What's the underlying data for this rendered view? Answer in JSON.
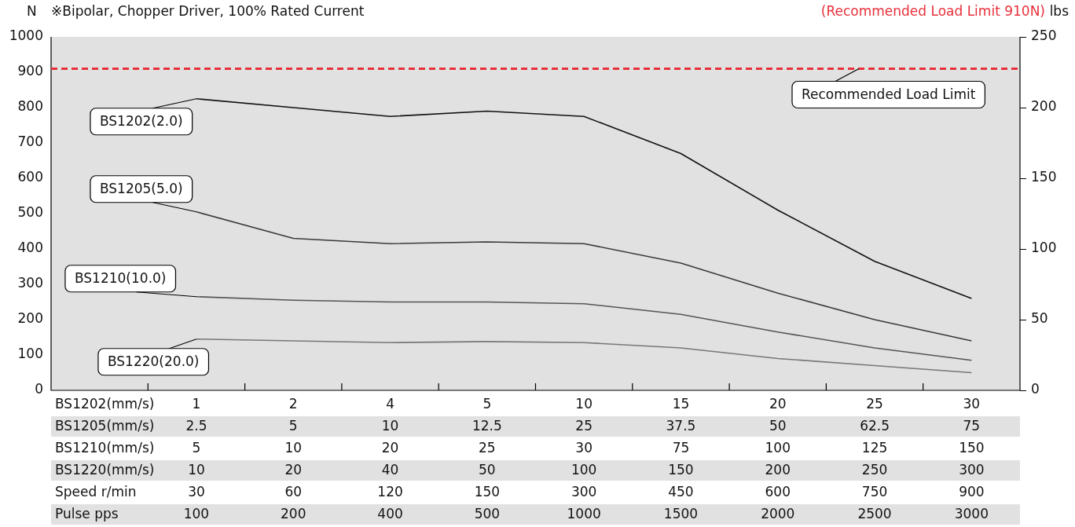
{
  "chart_data": {
    "type": "line",
    "title": "※Bipolar, Chopper Driver, 100% Rated Current",
    "subtitle": "(Recommended Load Limit 910N)",
    "ylabel": "N",
    "y2label": "lbs",
    "xlabel": "BS1202(mm/s)",
    "categories": [
      "1",
      "2",
      "4",
      "5",
      "10",
      "15",
      "20",
      "25",
      "30"
    ],
    "series": [
      {
        "name": "BS1202(2.0)",
        "color": "#111111",
        "values": [
          825,
          800,
          775,
          790,
          775,
          670,
          510,
          365,
          260
        ]
      },
      {
        "name": "BS1205(5.0)",
        "color": "#3a3a3a",
        "values": [
          505,
          430,
          415,
          420,
          415,
          360,
          275,
          200,
          140
        ]
      },
      {
        "name": "BS1210(10.0)",
        "color": "#555555",
        "values": [
          265,
          255,
          250,
          250,
          245,
          215,
          165,
          120,
          85
        ]
      },
      {
        "name": "BS1220(20.0)",
        "color": "#777777",
        "values": [
          145,
          140,
          135,
          138,
          135,
          120,
          90,
          70,
          50
        ]
      }
    ],
    "ylim": [
      0,
      1000
    ],
    "yticks": [
      0,
      100,
      200,
      300,
      400,
      500,
      600,
      700,
      800,
      900,
      1000
    ],
    "y2lim": [
      0,
      250
    ],
    "y2ticks": [
      0,
      50,
      100,
      150,
      200,
      250
    ],
    "ref_lines": [
      {
        "axis": "y",
        "value": 910,
        "label": "Recommended Load Limit",
        "color": "#e8303a",
        "line_style": "dashed"
      }
    ],
    "grid": false,
    "legend": false,
    "marker": "none",
    "line_style": "solid",
    "annotations": [
      "BS1205(mm/s)",
      "2.5",
      "5",
      "10",
      "12.5",
      "25",
      "37.5",
      "50",
      "62.5",
      "75",
      "BS1210(mm/s)",
      "5",
      "10",
      "20",
      "25",
      "30",
      "75",
      "100",
      "125",
      "150",
      "BS1220(mm/s)",
      "10",
      "20",
      "40",
      "50",
      "100",
      "150",
      "200",
      "250",
      "300",
      "Speed r/min",
      "30",
      "60",
      "120",
      "150",
      "300",
      "450",
      "600",
      "750",
      "900",
      "Pulse pps",
      "100",
      "200",
      "400",
      "500",
      "1000",
      "1500",
      "2000",
      "2500",
      "3000"
    ]
  }
}
